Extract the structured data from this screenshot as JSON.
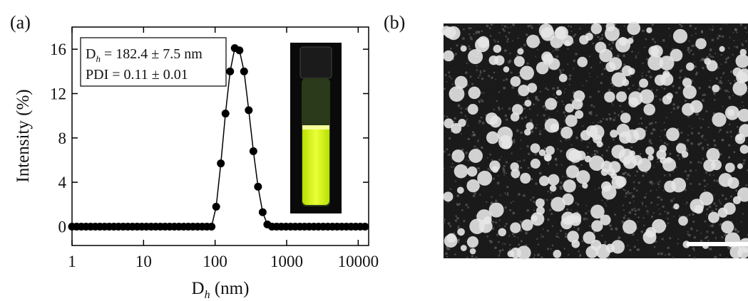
{
  "panel_labels": [
    "(a)",
    "(b)"
  ],
  "chart_data": {
    "type": "line",
    "xscale": "log",
    "ylabel": "Intensity (%)",
    "xlabel": {
      "symbol": "D",
      "subscript": "h",
      "unit": " (nm)"
    },
    "annotation": {
      "line1": {
        "symbol": "D",
        "subscript": "h",
        "text": " = 182.4 ± 7.5 nm"
      },
      "line2": "PDI = 0.11 ± 0.01"
    },
    "color": "#000000",
    "x": [
      1,
      1.161,
      1.349,
      1.567,
      1.82,
      2.113,
      2.455,
      2.851,
      3.311,
      3.846,
      4.467,
      5.188,
      6.026,
      6.998,
      8.128,
      9.441,
      10.96,
      12.74,
      14.79,
      17.18,
      19.95,
      23.17,
      26.92,
      31.26,
      36.31,
      42.17,
      48.98,
      56.89,
      66.07,
      76.74,
      89.13,
      103.5,
      120.2,
      139.6,
      162.2,
      188.4,
      218.8,
      254.1,
      295.1,
      342.8,
      398.1,
      462.4,
      537,
      623.7,
      724.4,
      841.4,
      977.2,
      1135,
      1318,
      1531,
      1778,
      2065,
      2399,
      2786,
      3236,
      3758,
      4365,
      5070,
      5888,
      6839,
      7943,
      9226,
      10715,
      12445
    ],
    "values": [
      0,
      0,
      0,
      0,
      0,
      0,
      0,
      0,
      0,
      0,
      0,
      0,
      0,
      0,
      0,
      0,
      0,
      0,
      0,
      0,
      0,
      0,
      0,
      0,
      0,
      0,
      0,
      0,
      0,
      0,
      0,
      1.8,
      5.7,
      10.2,
      14,
      16.1,
      15.9,
      14,
      10.5,
      6.8,
      3.6,
      1.3,
      0.2,
      0,
      0,
      0,
      0,
      0,
      0,
      0,
      0,
      0,
      0,
      0,
      0,
      0,
      0,
      0,
      0,
      0,
      0,
      0,
      0,
      0
    ],
    "xlim": [
      1,
      14000
    ],
    "xticks": [
      1,
      10,
      100,
      1000,
      10000
    ],
    "ylim": [
      -1.7,
      18
    ],
    "yticks": [
      0,
      4,
      8,
      12,
      16
    ]
  }
}
